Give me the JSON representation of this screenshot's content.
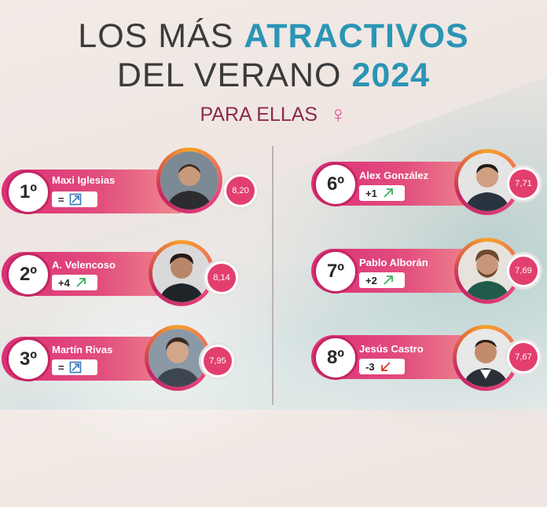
{
  "header": {
    "line1_plain": "LOS MÁS",
    "line1_accent": "ATRACTIVOS",
    "line2_plain": "DEL VERANO",
    "line2_accent": "2024",
    "subtitle": "PARA ELLAS",
    "subtitle_icon": "female-symbol-icon"
  },
  "colors": {
    "title_accent": "#2b95b5",
    "bar_pink": "#dc2f78",
    "rank_border": "#c42562",
    "score_fill": "#e23f6e",
    "arrow_up": "#3bb15a",
    "arrow_down": "#d9342b",
    "arrow_same": "#3576b8"
  },
  "entries": [
    {
      "rank": "1º",
      "name": "Maxi Iglesias",
      "change": "=",
      "trend": "same",
      "score": "8,20"
    },
    {
      "rank": "2º",
      "name": "A. Velencoso",
      "change": "+4",
      "trend": "up",
      "score": "8,14"
    },
    {
      "rank": "3º",
      "name": "Martín Rivas",
      "change": "=",
      "trend": "same",
      "score": "7,95"
    },
    {
      "rank": "6º",
      "name": "Alex González",
      "change": "+1",
      "trend": "up",
      "score": "7,71"
    },
    {
      "rank": "7º",
      "name": "Pablo Alborán",
      "change": "+2",
      "trend": "up",
      "score": "7,69"
    },
    {
      "rank": "8º",
      "name": "Jesús Castro",
      "change": "-3",
      "trend": "down",
      "score": "7,67"
    }
  ]
}
